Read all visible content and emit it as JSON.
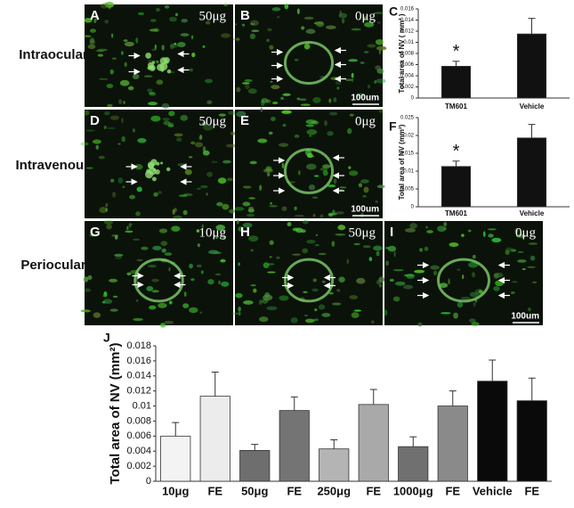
{
  "row_labels": [
    "Intraocular",
    "Intravenous",
    "Periocular"
  ],
  "images": [
    {
      "label": "A",
      "dose": "50μg"
    },
    {
      "label": "B",
      "dose": "0μg",
      "scale": "100um"
    },
    {
      "label": "D",
      "dose": "50μg"
    },
    {
      "label": "E",
      "dose": "0μg",
      "scale": "100um"
    },
    {
      "label": "G",
      "dose": "10μg"
    },
    {
      "label": "H",
      "dose": "50μg"
    },
    {
      "label": "I",
      "dose": "0μg",
      "scale": "100um"
    }
  ],
  "chart_data": [
    {
      "type": "bar",
      "panel": "C",
      "y_label": "Total area of NV ( mm² )",
      "categories": [
        "TM601",
        "Vehicle"
      ],
      "values": [
        0.0057,
        0.0115
      ],
      "errors": [
        0.0009,
        0.0028
      ],
      "color": "#111111",
      "annotation": "*",
      "ylim": [
        0,
        0.016
      ],
      "yticks": [
        0,
        0.002,
        0.004,
        0.006,
        0.008,
        0.01,
        0.012,
        0.014,
        0.016
      ]
    },
    {
      "type": "bar",
      "panel": "F",
      "y_label": "Total area of NV (mm²)",
      "categories": [
        "TM601",
        "Vehicle"
      ],
      "values": [
        0.0113,
        0.0193
      ],
      "errors": [
        0.0015,
        0.0038
      ],
      "color": "#111111",
      "annotation": "*",
      "ylim": [
        0,
        0.025
      ],
      "yticks": [
        0,
        0.005,
        0.01,
        0.015,
        0.02,
        0.025
      ]
    },
    {
      "type": "bar",
      "panel": "J",
      "y_label": "Total area of NV (mm²)",
      "categories": [
        "10μg",
        "FE",
        "50μg",
        "FE",
        "250μg",
        "FE",
        "1000μg",
        "FE",
        "Vehicle",
        "FE"
      ],
      "values": [
        0.006,
        0.0113,
        0.0041,
        0.0094,
        0.0043,
        0.0102,
        0.0046,
        0.01,
        0.0133,
        0.0107
      ],
      "errors": [
        0.0018,
        0.0032,
        0.0008,
        0.0018,
        0.0012,
        0.002,
        0.0013,
        0.002,
        0.0028,
        0.003
      ],
      "colors": [
        "#f3f3f3",
        "#ececec",
        "#6e6e6e",
        "#747474",
        "#b4b4b4",
        "#a9a9a9",
        "#707070",
        "#8a8a8a",
        "#0a0a0a",
        "#0a0a0a"
      ],
      "ylim": [
        0,
        0.018
      ],
      "yticks": [
        0,
        0.002,
        0.004,
        0.006,
        0.008,
        0.01,
        0.012,
        0.014,
        0.016,
        0.018
      ]
    }
  ]
}
